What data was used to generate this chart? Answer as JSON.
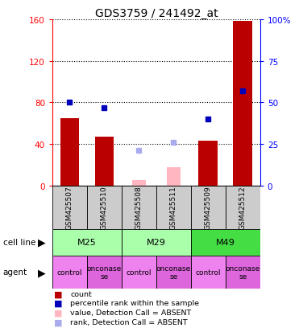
{
  "title": "GDS3759 / 241492_at",
  "samples": [
    "GSM425507",
    "GSM425510",
    "GSM425508",
    "GSM425511",
    "GSM425509",
    "GSM425512"
  ],
  "count_values": [
    65,
    47,
    null,
    null,
    43,
    158
  ],
  "count_absent_values": [
    null,
    null,
    5,
    18,
    null,
    null
  ],
  "percentile_values": [
    50,
    47,
    null,
    null,
    40,
    57
  ],
  "percentile_absent_values": [
    null,
    null,
    21,
    26,
    null,
    null
  ],
  "left_ylim": [
    0,
    160
  ],
  "right_ylim": [
    0,
    100
  ],
  "left_yticks": [
    0,
    40,
    80,
    120,
    160
  ],
  "right_yticks": [
    0,
    25,
    50,
    75,
    100
  ],
  "right_yticklabels": [
    "0",
    "25",
    "50",
    "75",
    "100%"
  ],
  "bar_color": "#bb0000",
  "bar_absent_color": "#ffb6c1",
  "dot_color": "#0000bb",
  "dot_absent_color": "#aaaaee",
  "sample_box_color": "#cccccc",
  "cell_groups": [
    {
      "label": "M25",
      "start": 0,
      "end": 2,
      "color": "#aaffaa"
    },
    {
      "label": "M29",
      "start": 2,
      "end": 4,
      "color": "#aaffaa"
    },
    {
      "label": "M49",
      "start": 4,
      "end": 6,
      "color": "#44dd44"
    }
  ],
  "agent_labels": [
    "control",
    "onconase\nse",
    "control",
    "onconase\nse",
    "control",
    "onconase\nse"
  ],
  "agent_colors": [
    "#ee82ee",
    "#dd66dd",
    "#ee82ee",
    "#dd66dd",
    "#ee82ee",
    "#dd66dd"
  ],
  "legend_items": [
    {
      "label": "count",
      "color": "#bb0000"
    },
    {
      "label": "percentile rank within the sample",
      "color": "#0000bb"
    },
    {
      "label": "value, Detection Call = ABSENT",
      "color": "#ffb6c1"
    },
    {
      "label": "rank, Detection Call = ABSENT",
      "color": "#aaaaee"
    }
  ]
}
